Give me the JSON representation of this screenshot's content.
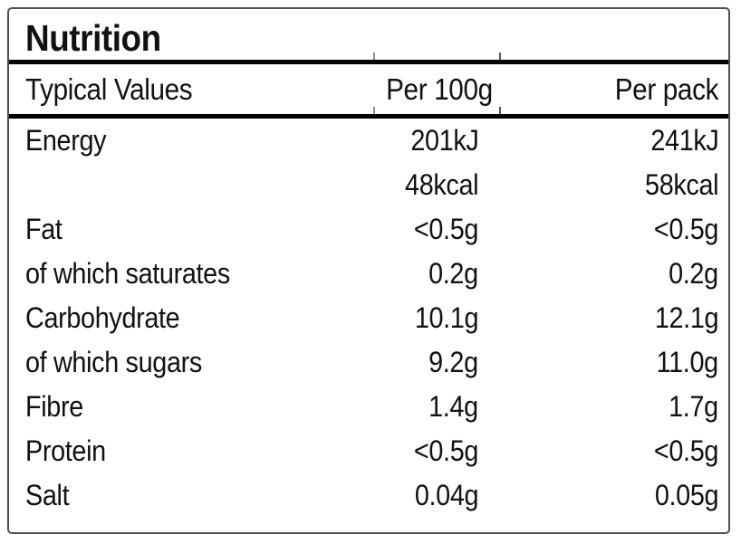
{
  "label": {
    "title": "Nutrition",
    "columns": [
      "Typical Values",
      "Per 100g",
      "Per pack"
    ],
    "rows": [
      {
        "name": "Energy",
        "per_100g": "201kJ",
        "per_pack": "241kJ"
      },
      {
        "name": "",
        "per_100g": "48kcal",
        "per_pack": "58kcal"
      },
      {
        "name": "Fat",
        "per_100g": "<0.5g",
        "per_pack": "<0.5g"
      },
      {
        "name": "of which saturates",
        "per_100g": "0.2g",
        "per_pack": "0.2g"
      },
      {
        "name": "Carbohydrate",
        "per_100g": "10.1g",
        "per_pack": "12.1g"
      },
      {
        "name": "of which sugars",
        "per_100g": "9.2g",
        "per_pack": "11.0g"
      },
      {
        "name": "Fibre",
        "per_100g": "1.4g",
        "per_pack": "1.7g"
      },
      {
        "name": "Protein",
        "per_100g": "<0.5g",
        "per_pack": "<0.5g"
      },
      {
        "name": "Salt",
        "per_100g": "0.04g",
        "per_pack": "0.05g"
      }
    ],
    "colors": {
      "text": "#111111",
      "rule": "#000000",
      "border": "#4f4f4f",
      "background": "#ffffff"
    }
  }
}
